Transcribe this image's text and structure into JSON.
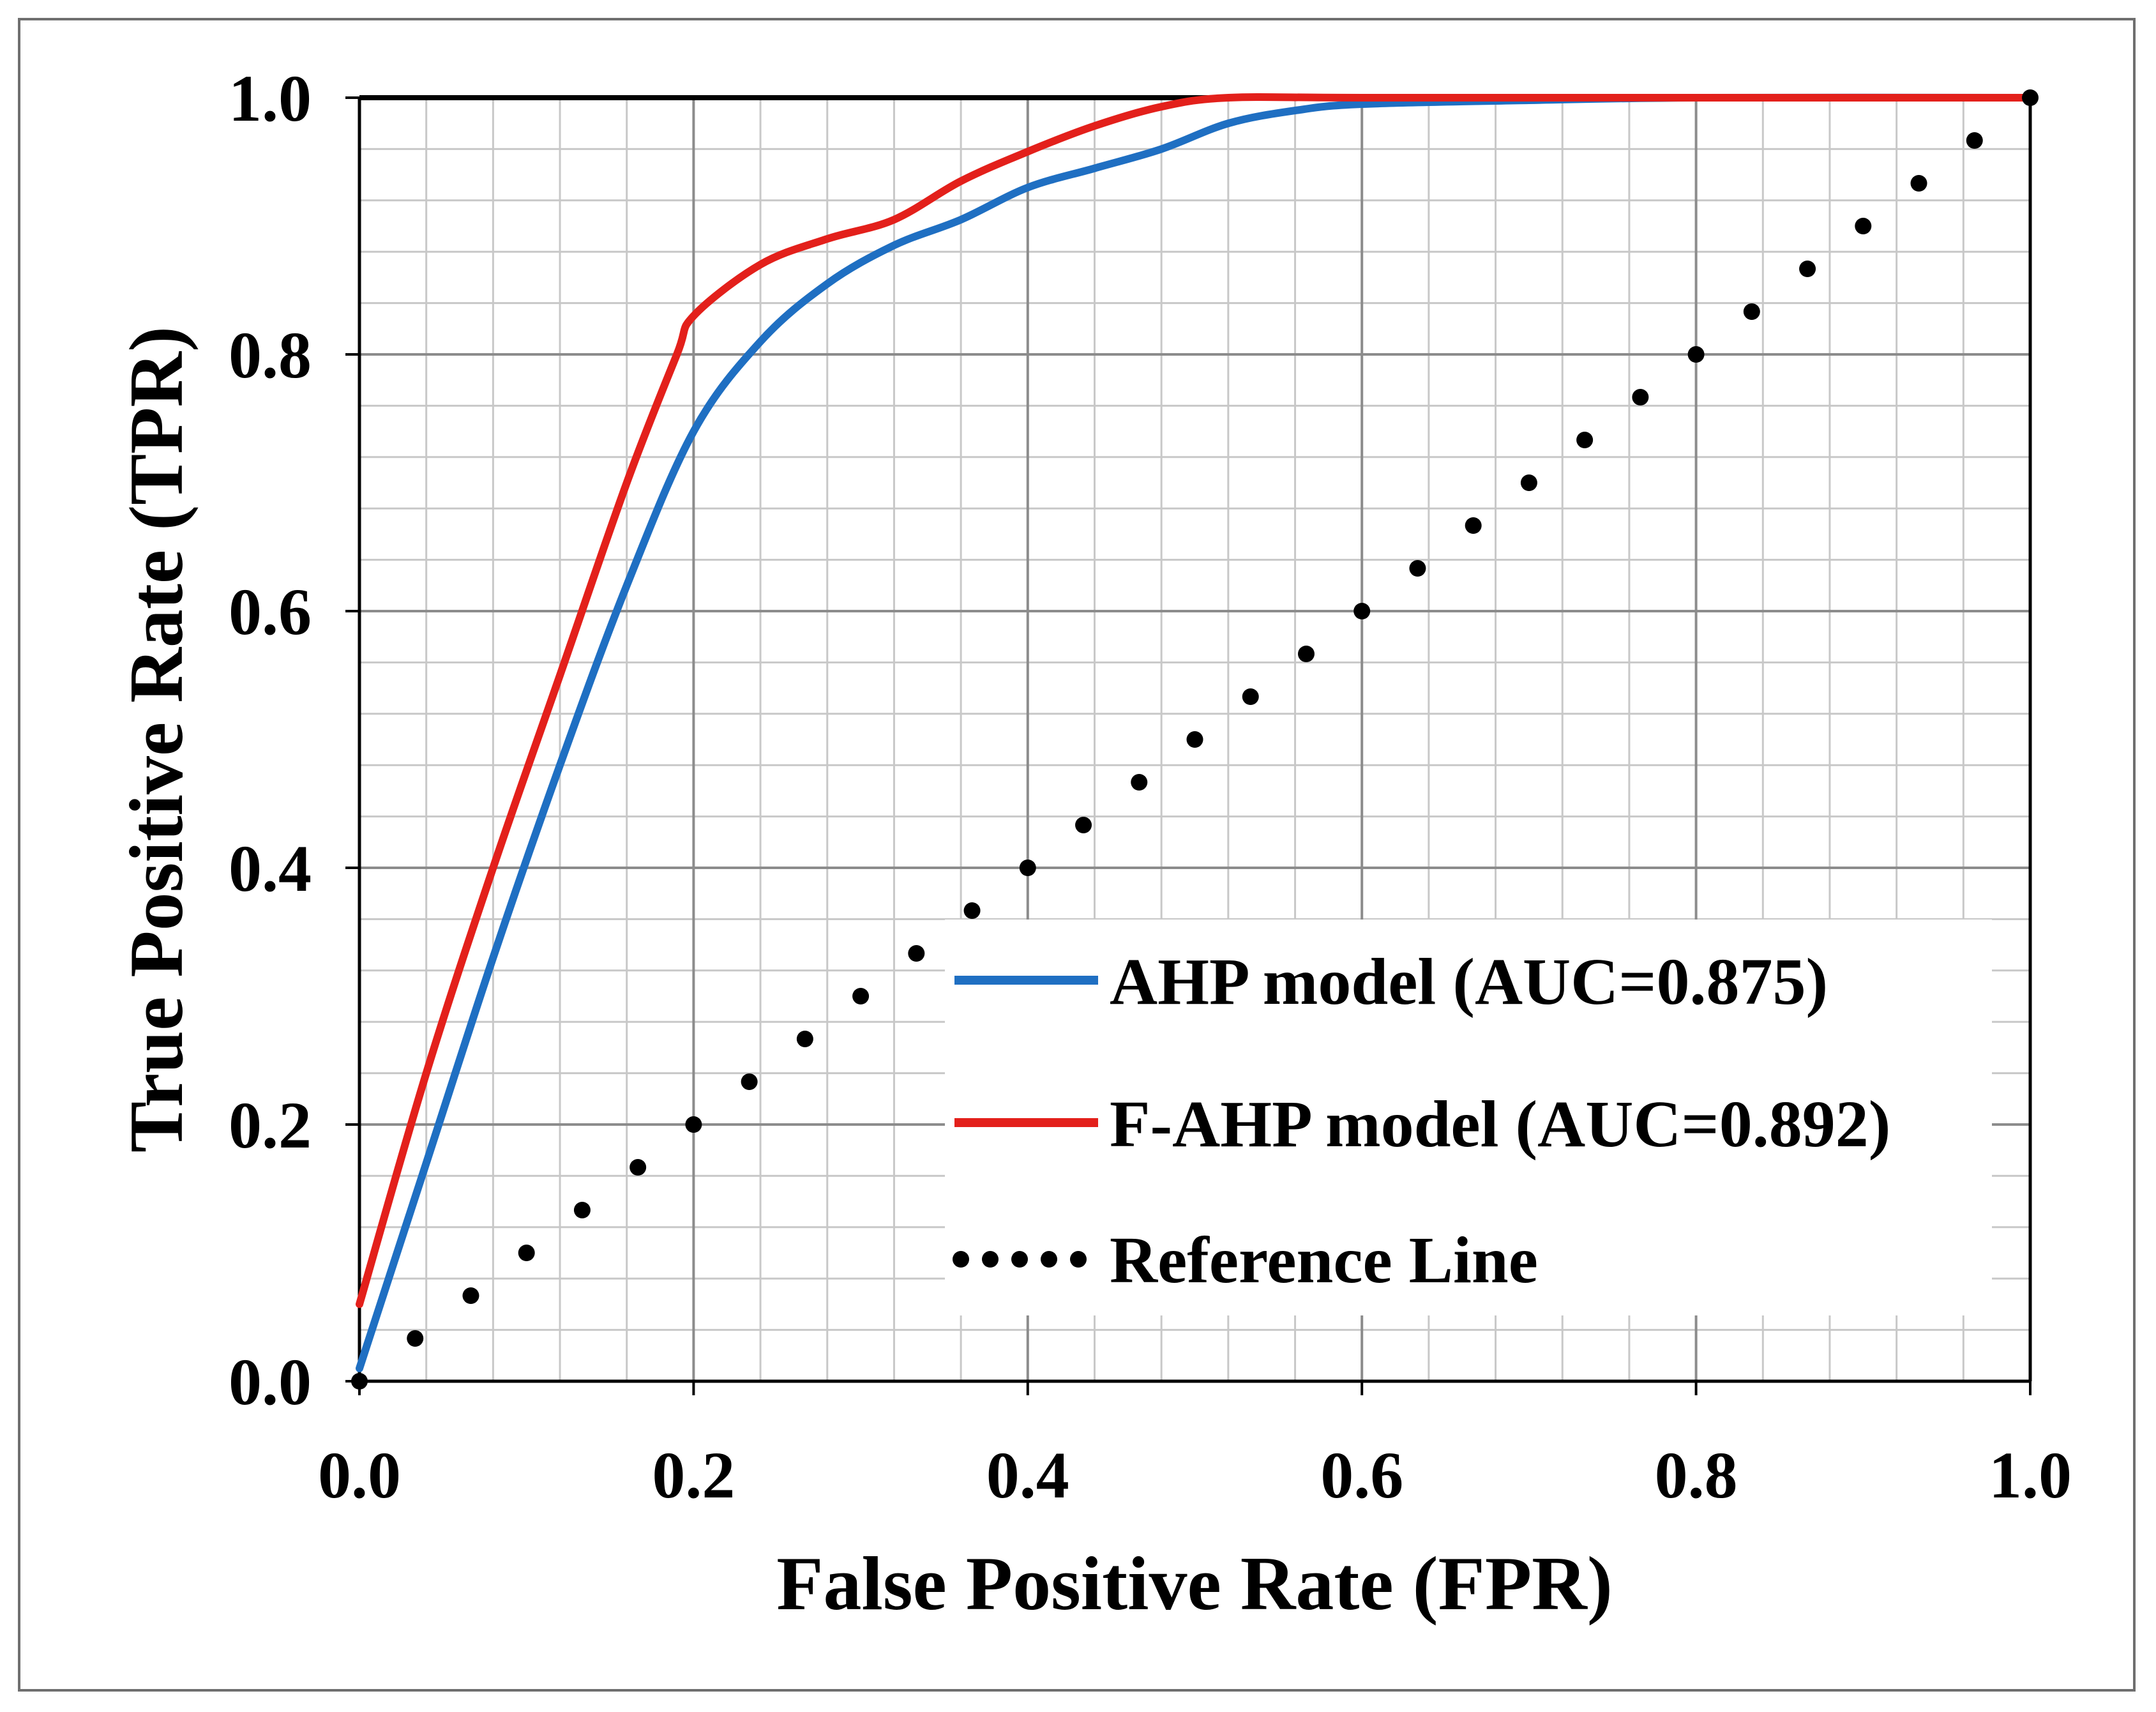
{
  "chart_data": {
    "type": "line",
    "title": "",
    "xlabel": "False Positive Rate (FPR)",
    "ylabel": "True Positive Rate (TPR)",
    "xlim": [
      0,
      1
    ],
    "ylim": [
      0,
      1
    ],
    "grid": true,
    "minor_grid_step": 0.04,
    "major_grid_step": 0.2,
    "x_ticks": [
      "0.0",
      "0.2",
      "0.4",
      "0.6",
      "0.8",
      "1.0"
    ],
    "y_ticks": [
      "0.0",
      "0.2",
      "0.4",
      "0.6",
      "0.8",
      "1.0"
    ],
    "legend_position": "center-right",
    "series": [
      {
        "name": "AHP model (AUC=0.875)",
        "color": "#1f6fc2",
        "style": "solid",
        "points": [
          [
            0,
            0.01
          ],
          [
            0.04,
            0.17
          ],
          [
            0.08,
            0.33
          ],
          [
            0.12,
            0.48
          ],
          [
            0.16,
            0.62
          ],
          [
            0.2,
            0.74
          ],
          [
            0.24,
            0.81
          ],
          [
            0.28,
            0.855
          ],
          [
            0.32,
            0.885
          ],
          [
            0.36,
            0.905
          ],
          [
            0.4,
            0.93
          ],
          [
            0.44,
            0.945
          ],
          [
            0.48,
            0.96
          ],
          [
            0.52,
            0.98
          ],
          [
            0.56,
            0.99
          ],
          [
            0.6,
            0.995
          ],
          [
            0.7,
            0.998
          ],
          [
            0.8,
            1.0
          ],
          [
            1.0,
            1.0
          ]
        ]
      },
      {
        "name": "F-AHP model (AUC=0.892)",
        "color": "#e3201b",
        "style": "solid",
        "points": [
          [
            0,
            0.06
          ],
          [
            0.04,
            0.24
          ],
          [
            0.08,
            0.4
          ],
          [
            0.12,
            0.55
          ],
          [
            0.16,
            0.7
          ],
          [
            0.19,
            0.8
          ],
          [
            0.2,
            0.83
          ],
          [
            0.24,
            0.87
          ],
          [
            0.28,
            0.89
          ],
          [
            0.32,
            0.905
          ],
          [
            0.36,
            0.935
          ],
          [
            0.4,
            0.958
          ],
          [
            0.44,
            0.978
          ],
          [
            0.48,
            0.993
          ],
          [
            0.52,
            1.0
          ],
          [
            0.6,
            1.0
          ],
          [
            0.8,
            1.0
          ],
          [
            1.0,
            1.0
          ]
        ]
      },
      {
        "name": "Reference Line",
        "color": "#000000",
        "style": "dotted",
        "points": [
          [
            0,
            0
          ],
          [
            1,
            1
          ]
        ]
      }
    ]
  }
}
